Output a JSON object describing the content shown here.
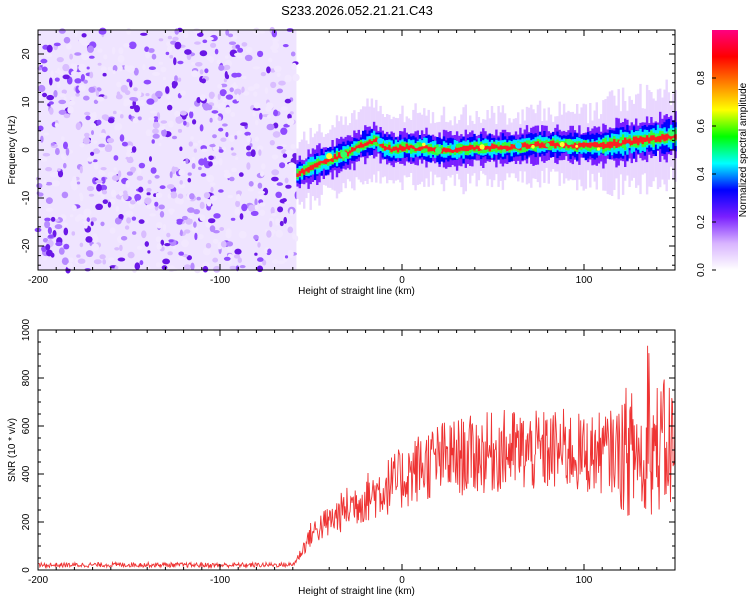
{
  "title": "S233.2026.052.21.21.C43",
  "chart_data": [
    {
      "type": "scatter",
      "name": "spectrogram",
      "xlabel": "Height of straight line (km)",
      "ylabel": "Frequency (Hz)",
      "xlim": [
        -200,
        150
      ],
      "ylim": [
        -25,
        25
      ],
      "xticks": [
        -200,
        -100,
        0,
        100
      ],
      "xtick_labels": [
        "-200",
        "-100",
        "0",
        "100"
      ],
      "yticks": [
        -20,
        -10,
        0,
        10,
        20
      ],
      "ytick_labels": [
        "-20",
        "-10",
        "0",
        "10",
        "20"
      ],
      "noise_region_x": [
        -200,
        -58
      ],
      "ridge": {
        "x": [
          -58,
          -50,
          -40,
          -30,
          -20,
          -15,
          -10,
          -5,
          0,
          10,
          20,
          30,
          40,
          50,
          60,
          70,
          80,
          90,
          100,
          110,
          120,
          130,
          140,
          150
        ],
        "y": [
          -5,
          -3.5,
          -2,
          -0.5,
          1.5,
          2,
          0.5,
          0,
          0.5,
          0.5,
          0,
          0,
          0.5,
          0.5,
          0.5,
          1,
          1.2,
          1,
          0.8,
          1,
          1.5,
          2,
          2.5,
          3
        ]
      },
      "colorbar": {
        "label": "Normalized spectral amplitude",
        "range": [
          0,
          1
        ],
        "ticks": [
          0,
          0.2,
          0.4,
          0.6,
          0.8
        ],
        "tick_labels": [
          "0.0",
          "0.2",
          "0.4",
          "0.6",
          "0.8"
        ],
        "colors": [
          "#ffffff",
          "#d8b4ff",
          "#7a1fff",
          "#0000ff",
          "#00ffff",
          "#00ff00",
          "#ffff00",
          "#ff8000",
          "#ff0000",
          "#ff0080"
        ]
      }
    },
    {
      "type": "line",
      "name": "snr",
      "xlabel": "Height of straight line (km)",
      "ylabel": "SNR (10 * v/v)",
      "xlim": [
        -200,
        150
      ],
      "ylim": [
        0,
        1000
      ],
      "xticks": [
        -200,
        -100,
        0,
        100
      ],
      "xtick_labels": [
        "-200",
        "-100",
        "0",
        "100"
      ],
      "yticks": [
        0,
        200,
        400,
        600,
        800,
        1000
      ],
      "ytick_labels": [
        "0",
        "200",
        "400",
        "600",
        "800",
        "1000"
      ],
      "series": [
        {
          "name": "SNR",
          "color": "#ee3333",
          "x": [
            -200,
            -150,
            -100,
            -60,
            -58,
            -55,
            -50,
            -45,
            -40,
            -30,
            -20,
            -10,
            0,
            10,
            20,
            30,
            40,
            50,
            60,
            70,
            80,
            90,
            100,
            110,
            120,
            130,
            140,
            150
          ],
          "y": [
            20,
            22,
            20,
            22,
            40,
            80,
            150,
            180,
            200,
            260,
            300,
            340,
            380,
            430,
            460,
            470,
            480,
            490,
            500,
            490,
            495,
            500,
            480,
            490,
            500,
            480,
            510,
            520
          ]
        }
      ]
    }
  ]
}
